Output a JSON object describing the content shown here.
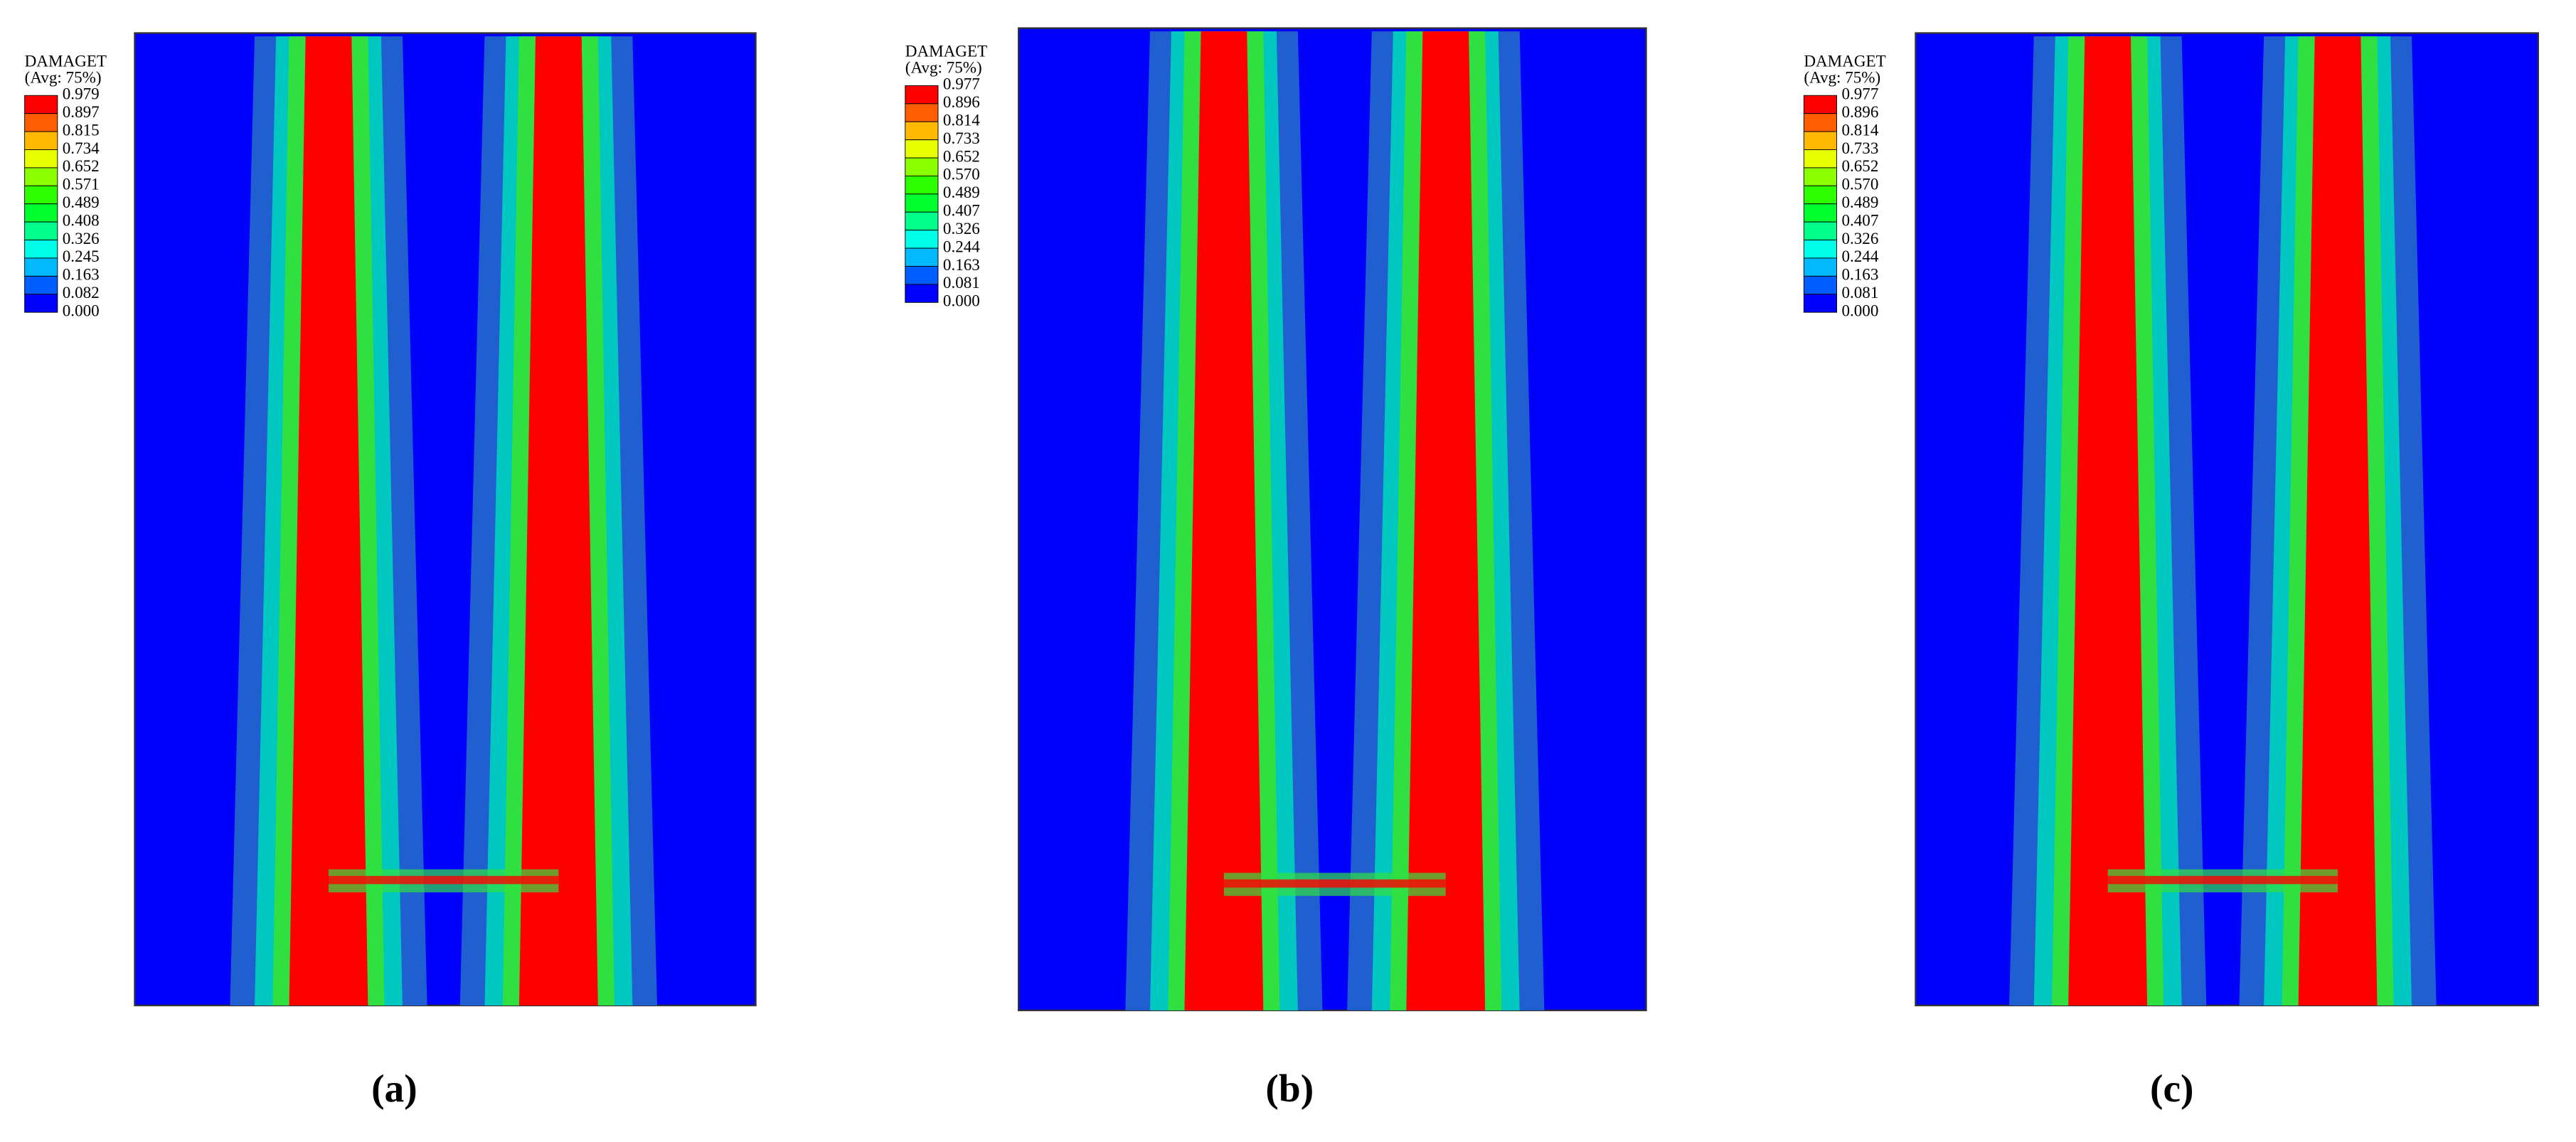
{
  "panels": [
    {
      "caption": "(a)",
      "legend": {
        "title": "DAMAGET",
        "subtitle": "(Avg: 75%)",
        "levels": [
          "0.979",
          "0.897",
          "0.815",
          "0.734",
          "0.652",
          "0.571",
          "0.489",
          "0.408",
          "0.326",
          "0.245",
          "0.163",
          "0.082",
          "0.000"
        ]
      }
    },
    {
      "caption": "(b)",
      "legend": {
        "title": "DAMAGET",
        "subtitle": "(Avg: 75%)",
        "levels": [
          "0.977",
          "0.896",
          "0.814",
          "0.733",
          "0.652",
          "0.570",
          "0.489",
          "0.407",
          "0.326",
          "0.244",
          "0.163",
          "0.081",
          "0.000"
        ]
      }
    },
    {
      "caption": "(c)",
      "legend": {
        "title": "DAMAGET",
        "subtitle": "(Avg: 75%)",
        "levels": [
          "0.977",
          "0.896",
          "0.814",
          "0.733",
          "0.652",
          "0.570",
          "0.489",
          "0.407",
          "0.326",
          "0.244",
          "0.163",
          "0.081",
          "0.000"
        ]
      }
    }
  ]
}
